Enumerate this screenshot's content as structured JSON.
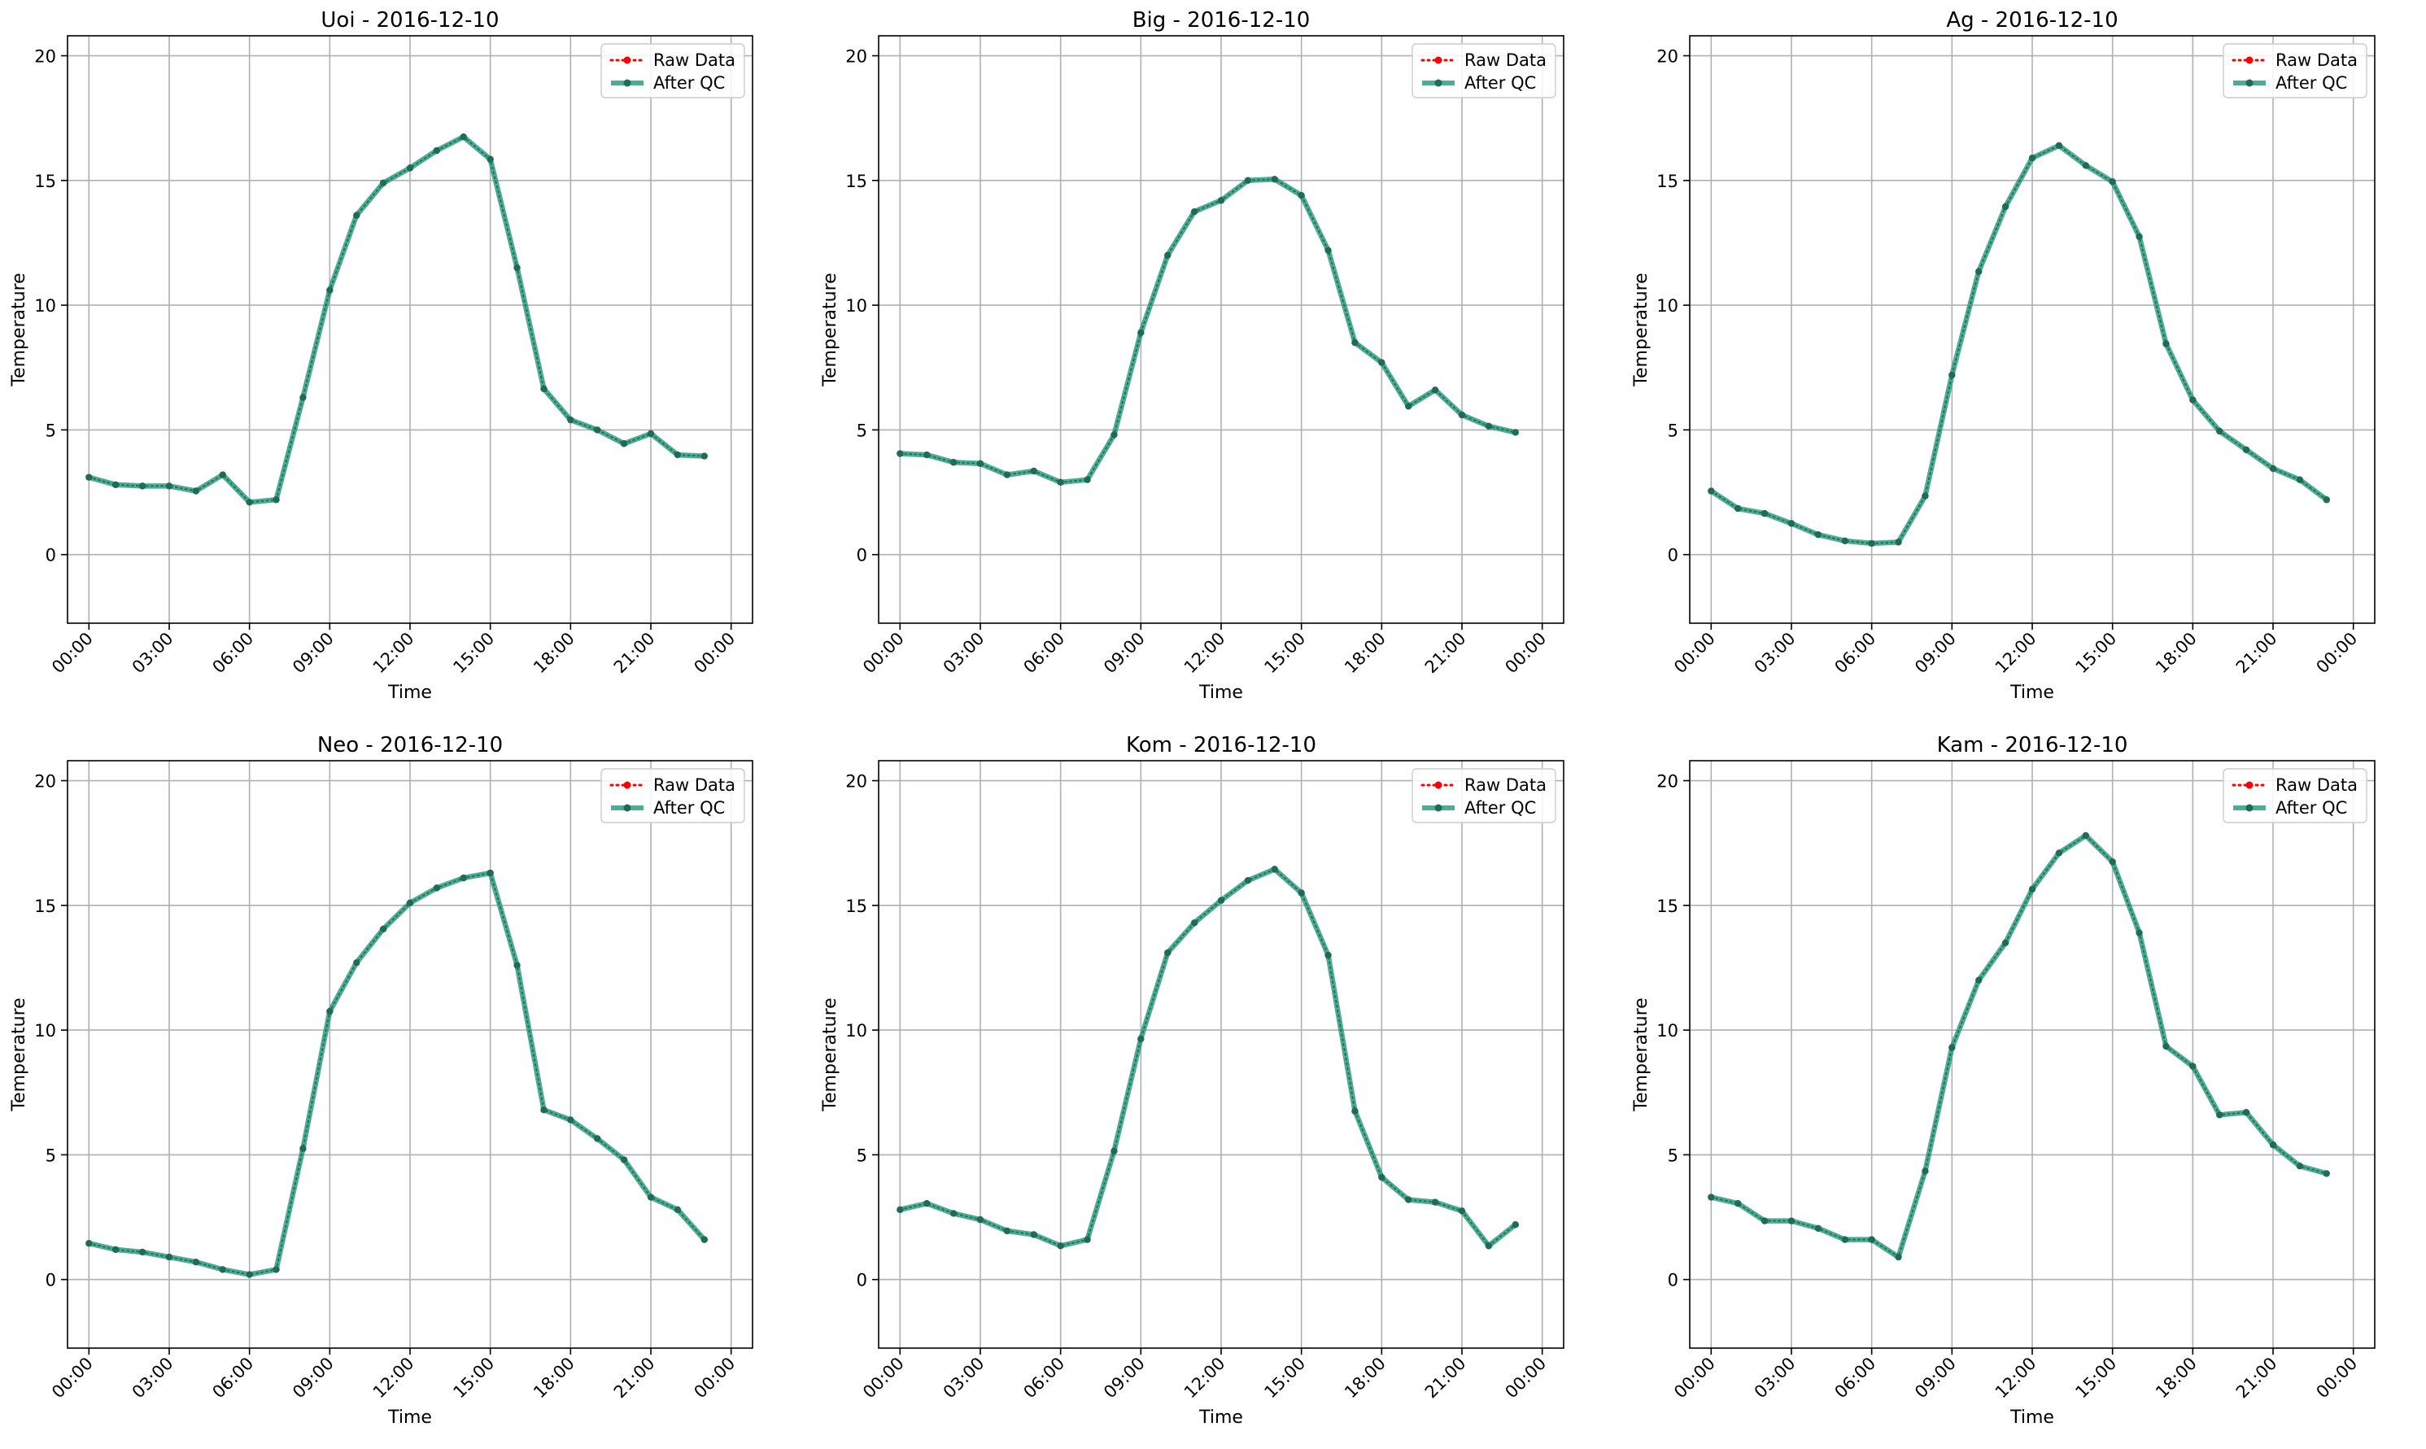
{
  "colors": {
    "raw": "#ff0000",
    "qc": "#2e9e7e",
    "qc_marker": "#1f6b56",
    "grid": "#b0b0b0",
    "legend_border": "#cccccc"
  },
  "legend": {
    "raw_label": "Raw Data",
    "qc_label": "After QC",
    "placement": "top-right"
  },
  "chart_data": [
    {
      "type": "line",
      "title": "Uoi - 2016-12-10",
      "xlabel": "Time",
      "ylabel": "Temperature",
      "ylim": [
        -2.75,
        20.8
      ],
      "yticks": [
        0,
        5,
        10,
        15,
        20
      ],
      "xlim": [
        "2016-12-09 23:12",
        "2016-12-11 00:48"
      ],
      "xticks": [
        "00:00",
        "03:00",
        "06:00",
        "09:00",
        "12:00",
        "15:00",
        "18:00",
        "21:00",
        "00:00"
      ],
      "x": [
        "00:00",
        "01:00",
        "02:00",
        "03:00",
        "04:00",
        "05:00",
        "06:00",
        "07:00",
        "08:00",
        "09:00",
        "10:00",
        "11:00",
        "12:00",
        "13:00",
        "14:00",
        "15:00",
        "16:00",
        "17:00",
        "18:00",
        "19:00",
        "20:00",
        "21:00",
        "22:00",
        "23:00"
      ],
      "grid": true,
      "series": [
        {
          "name": "Raw Data",
          "values": [
            3.1,
            2.8,
            2.75,
            2.75,
            2.55,
            3.2,
            2.1,
            2.2,
            6.3,
            10.6,
            13.6,
            14.9,
            15.5,
            16.2,
            16.75,
            15.85,
            11.5,
            6.65,
            5.4,
            5.0,
            4.45,
            4.85,
            4.0,
            3.95
          ]
        },
        {
          "name": "After QC",
          "values": [
            3.1,
            2.8,
            2.75,
            2.75,
            2.55,
            3.2,
            2.1,
            2.2,
            6.3,
            10.6,
            13.6,
            14.9,
            15.5,
            16.2,
            16.75,
            15.85,
            11.5,
            6.65,
            5.4,
            5.0,
            4.45,
            4.85,
            4.0,
            3.95
          ]
        }
      ]
    },
    {
      "type": "line",
      "title": "Big - 2016-12-10",
      "xlabel": "Time",
      "ylabel": "Temperature",
      "ylim": [
        -2.75,
        20.8
      ],
      "yticks": [
        0,
        5,
        10,
        15,
        20
      ],
      "xlim": [
        "2016-12-09 23:12",
        "2016-12-11 00:48"
      ],
      "xticks": [
        "00:00",
        "03:00",
        "06:00",
        "09:00",
        "12:00",
        "15:00",
        "18:00",
        "21:00",
        "00:00"
      ],
      "x": [
        "00:00",
        "01:00",
        "02:00",
        "03:00",
        "04:00",
        "05:00",
        "06:00",
        "07:00",
        "08:00",
        "09:00",
        "10:00",
        "11:00",
        "12:00",
        "13:00",
        "14:00",
        "15:00",
        "16:00",
        "17:00",
        "18:00",
        "19:00",
        "20:00",
        "21:00",
        "22:00",
        "23:00"
      ],
      "grid": true,
      "series": [
        {
          "name": "Raw Data",
          "values": [
            4.05,
            4.0,
            3.7,
            3.65,
            3.2,
            3.35,
            2.9,
            3.0,
            4.8,
            8.9,
            12.0,
            13.75,
            14.2,
            15.0,
            15.05,
            14.4,
            12.2,
            8.5,
            7.7,
            5.95,
            6.6,
            5.6,
            5.15,
            4.9
          ]
        },
        {
          "name": "After QC",
          "values": [
            4.05,
            4.0,
            3.7,
            3.65,
            3.2,
            3.35,
            2.9,
            3.0,
            4.8,
            8.9,
            12.0,
            13.75,
            14.2,
            15.0,
            15.05,
            14.4,
            12.2,
            8.5,
            7.7,
            5.95,
            6.6,
            5.6,
            5.15,
            4.9
          ]
        }
      ]
    },
    {
      "type": "line",
      "title": "Ag - 2016-12-10",
      "xlabel": "Time",
      "ylabel": "Temperature",
      "ylim": [
        -2.75,
        20.8
      ],
      "yticks": [
        0,
        5,
        10,
        15,
        20
      ],
      "xlim": [
        "2016-12-09 23:12",
        "2016-12-11 00:48"
      ],
      "xticks": [
        "00:00",
        "03:00",
        "06:00",
        "09:00",
        "12:00",
        "15:00",
        "18:00",
        "21:00",
        "00:00"
      ],
      "x": [
        "00:00",
        "01:00",
        "02:00",
        "03:00",
        "04:00",
        "05:00",
        "06:00",
        "07:00",
        "08:00",
        "09:00",
        "10:00",
        "11:00",
        "12:00",
        "13:00",
        "14:00",
        "15:00",
        "16:00",
        "17:00",
        "18:00",
        "19:00",
        "20:00",
        "21:00",
        "22:00",
        "23:00"
      ],
      "grid": true,
      "series": [
        {
          "name": "Raw Data",
          "values": [
            2.55,
            1.85,
            1.65,
            1.25,
            0.8,
            0.55,
            0.45,
            0.5,
            2.35,
            7.2,
            11.35,
            13.95,
            15.9,
            16.4,
            15.6,
            14.95,
            12.75,
            8.45,
            6.2,
            4.95,
            4.2,
            3.45,
            3.0,
            2.2
          ]
        },
        {
          "name": "After QC",
          "values": [
            2.55,
            1.85,
            1.65,
            1.25,
            0.8,
            0.55,
            0.45,
            0.5,
            2.35,
            7.2,
            11.35,
            13.95,
            15.9,
            16.4,
            15.6,
            14.95,
            12.75,
            8.45,
            6.2,
            4.95,
            4.2,
            3.45,
            3.0,
            2.2
          ]
        }
      ]
    },
    {
      "type": "line",
      "title": "Neo - 2016-12-10",
      "xlabel": "Time",
      "ylabel": "Temperature",
      "ylim": [
        -2.75,
        20.8
      ],
      "yticks": [
        0,
        5,
        10,
        15,
        20
      ],
      "xlim": [
        "2016-12-09 23:12",
        "2016-12-11 00:48"
      ],
      "xticks": [
        "00:00",
        "03:00",
        "06:00",
        "09:00",
        "12:00",
        "15:00",
        "18:00",
        "21:00",
        "00:00"
      ],
      "x": [
        "00:00",
        "01:00",
        "02:00",
        "03:00",
        "04:00",
        "05:00",
        "06:00",
        "07:00",
        "08:00",
        "09:00",
        "10:00",
        "11:00",
        "12:00",
        "13:00",
        "14:00",
        "15:00",
        "16:00",
        "17:00",
        "18:00",
        "19:00",
        "20:00",
        "21:00",
        "22:00",
        "23:00"
      ],
      "grid": true,
      "series": [
        {
          "name": "Raw Data",
          "values": [
            1.45,
            1.2,
            1.1,
            0.9,
            0.7,
            0.4,
            0.2,
            0.4,
            5.25,
            10.75,
            12.7,
            14.05,
            15.1,
            15.7,
            16.1,
            16.3,
            12.6,
            6.8,
            6.4,
            5.65,
            4.8,
            3.3,
            2.8,
            1.6
          ]
        },
        {
          "name": "After QC",
          "values": [
            1.45,
            1.2,
            1.1,
            0.9,
            0.7,
            0.4,
            0.2,
            0.4,
            5.25,
            10.75,
            12.7,
            14.05,
            15.1,
            15.7,
            16.1,
            16.3,
            12.6,
            6.8,
            6.4,
            5.65,
            4.8,
            3.3,
            2.8,
            1.6
          ]
        }
      ]
    },
    {
      "type": "line",
      "title": "Kom - 2016-12-10",
      "xlabel": "Time",
      "ylabel": "Temperature",
      "ylim": [
        -2.75,
        20.8
      ],
      "yticks": [
        0,
        5,
        10,
        15,
        20
      ],
      "xlim": [
        "2016-12-09 23:12",
        "2016-12-11 00:48"
      ],
      "xticks": [
        "00:00",
        "03:00",
        "06:00",
        "09:00",
        "12:00",
        "15:00",
        "18:00",
        "21:00",
        "00:00"
      ],
      "x": [
        "00:00",
        "01:00",
        "02:00",
        "03:00",
        "04:00",
        "05:00",
        "06:00",
        "07:00",
        "08:00",
        "09:00",
        "10:00",
        "11:00",
        "12:00",
        "13:00",
        "14:00",
        "15:00",
        "16:00",
        "17:00",
        "18:00",
        "19:00",
        "20:00",
        "21:00",
        "22:00",
        "23:00"
      ],
      "grid": true,
      "series": [
        {
          "name": "Raw Data",
          "values": [
            2.8,
            3.05,
            2.65,
            2.4,
            1.95,
            1.8,
            1.35,
            1.6,
            5.15,
            9.65,
            13.1,
            14.3,
            15.2,
            16.0,
            16.45,
            15.5,
            13.0,
            6.75,
            4.1,
            3.2,
            3.1,
            2.75,
            1.35,
            2.2
          ]
        },
        {
          "name": "After QC",
          "values": [
            2.8,
            3.05,
            2.65,
            2.4,
            1.95,
            1.8,
            1.35,
            1.6,
            5.15,
            9.65,
            13.1,
            14.3,
            15.2,
            16.0,
            16.45,
            15.5,
            13.0,
            6.75,
            4.1,
            3.2,
            3.1,
            2.75,
            1.35,
            2.2
          ]
        }
      ]
    },
    {
      "type": "line",
      "title": "Kam - 2016-12-10",
      "xlabel": "Time",
      "ylabel": "Temperature",
      "ylim": [
        -2.75,
        20.8
      ],
      "yticks": [
        0,
        5,
        10,
        15,
        20
      ],
      "xlim": [
        "2016-12-09 23:12",
        "2016-12-11 00:48"
      ],
      "xticks": [
        "00:00",
        "03:00",
        "06:00",
        "09:00",
        "12:00",
        "15:00",
        "18:00",
        "21:00",
        "00:00"
      ],
      "x": [
        "00:00",
        "01:00",
        "02:00",
        "03:00",
        "04:00",
        "05:00",
        "06:00",
        "07:00",
        "08:00",
        "09:00",
        "10:00",
        "11:00",
        "12:00",
        "13:00",
        "14:00",
        "15:00",
        "16:00",
        "17:00",
        "18:00",
        "19:00",
        "20:00",
        "21:00",
        "22:00",
        "23:00"
      ],
      "grid": true,
      "series": [
        {
          "name": "Raw Data",
          "values": [
            3.3,
            3.05,
            2.35,
            2.35,
            2.05,
            1.6,
            1.6,
            0.9,
            4.35,
            9.3,
            12.0,
            13.5,
            15.65,
            17.1,
            17.8,
            16.75,
            13.9,
            9.35,
            8.55,
            6.6,
            6.7,
            5.4,
            4.55,
            4.25
          ]
        },
        {
          "name": "After QC",
          "values": [
            3.3,
            3.05,
            2.35,
            2.35,
            2.05,
            1.6,
            1.6,
            0.9,
            4.35,
            9.3,
            12.0,
            13.5,
            15.65,
            17.1,
            17.8,
            16.75,
            13.9,
            9.35,
            8.55,
            6.6,
            6.7,
            5.4,
            4.55,
            4.25
          ]
        }
      ]
    }
  ]
}
